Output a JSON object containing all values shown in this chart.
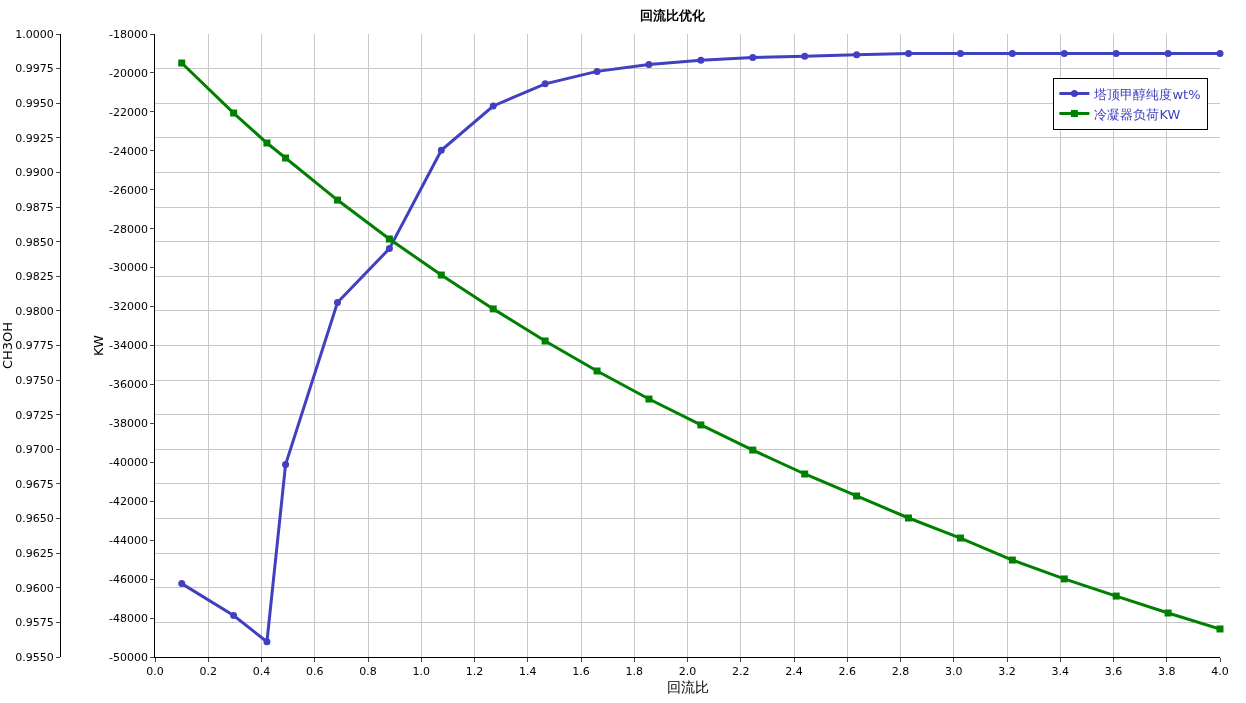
{
  "chart_data": {
    "type": "line",
    "title": "回流比优化",
    "xlabel": "回流比",
    "ylabel": "CH3OH",
    "y2label": "KW",
    "x": [
      0.1,
      0.295,
      0.42,
      0.49,
      0.685,
      0.88,
      1.075,
      1.27,
      1.465,
      1.66,
      1.855,
      2.05,
      2.245,
      2.44,
      2.635,
      2.83,
      3.025,
      3.22,
      3.415,
      3.61,
      3.805,
      4.0
    ],
    "series": [
      {
        "name": "塔顶甲醇纯度wt%",
        "color": "#4040c0",
        "marker": "circle",
        "values": [
          0.9603,
          0.958,
          0.9561,
          0.9689,
          0.9806,
          0.9845,
          0.9916,
          0.9948,
          0.9964,
          0.9973,
          0.9978,
          0.9981,
          0.9983,
          0.9984,
          0.9985,
          0.9986,
          0.9986,
          0.9986,
          0.9986,
          0.9986,
          0.9986,
          0.9986
        ]
      },
      {
        "name": "冷凝器负荷KW",
        "color": "#008000",
        "marker": "square",
        "axis": "y2",
        "values": [
          -19490,
          -22060,
          -23600,
          -24370,
          -26530,
          -28530,
          -30380,
          -32120,
          -33770,
          -35310,
          -36750,
          -38080,
          -39370,
          -40600,
          -41730,
          -42860,
          -43890,
          -45020,
          -45990,
          -46870,
          -47740,
          -48560
        ]
      }
    ],
    "xlim": [
      0,
      4
    ],
    "xticks": [
      {
        "value": 0,
        "label": "0.0"
      },
      0.2,
      0.4,
      0.6,
      0.8,
      {
        "value": 1,
        "label": "1.0"
      },
      1.2,
      1.4,
      1.6,
      1.8,
      {
        "value": 2,
        "label": "2.0"
      },
      2.2,
      2.4,
      2.6,
      2.8,
      {
        "value": 3,
        "label": "3.0"
      },
      3.2,
      3.4,
      3.6,
      3.8,
      {
        "value": 4,
        "label": "4.0"
      }
    ],
    "ylim": [
      0.955,
      1
    ],
    "yticks": [
      {
        "value": 0.955,
        "label": "0.9550"
      },
      0.9575,
      {
        "value": 0.96,
        "label": "0.9600"
      },
      0.9625,
      {
        "value": 0.965,
        "label": "0.9650"
      },
      0.9675,
      {
        "value": 0.97,
        "label": "0.9700"
      },
      0.9725,
      {
        "value": 0.975,
        "label": "0.9750"
      },
      0.9775,
      {
        "value": 0.98,
        "label": "0.9800"
      },
      0.9825,
      {
        "value": 0.985,
        "label": "0.9850"
      },
      0.9875,
      {
        "value": 0.99,
        "label": "0.9900"
      },
      0.9925,
      {
        "value": 0.995,
        "label": "0.9950"
      },
      0.9975,
      {
        "value": 1,
        "label": "1.0000"
      }
    ],
    "y2lim": [
      -50000,
      -18000
    ],
    "y2ticks": [
      -50000,
      -48000,
      -46000,
      -44000,
      -42000,
      -40000,
      -38000,
      -36000,
      -34000,
      -32000,
      -30000,
      -28000,
      -26000,
      -24000,
      -22000,
      -20000,
      -18000
    ],
    "grid": true,
    "legend": "top right",
    "line_style": "solid"
  }
}
